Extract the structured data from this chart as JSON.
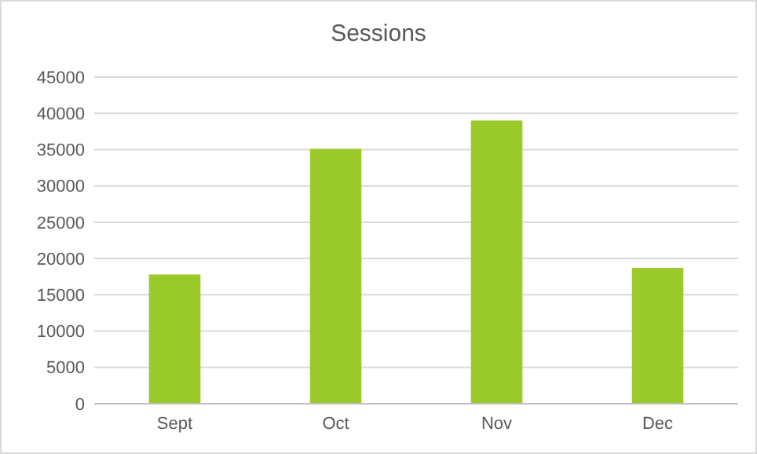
{
  "chart_data": {
    "type": "bar",
    "title": "Sessions",
    "categories": [
      "Sept",
      "Oct",
      "Nov",
      "Dec"
    ],
    "values": [
      17800,
      35100,
      39000,
      18700
    ],
    "color": "#9acb2b",
    "ylim": [
      0,
      45000
    ],
    "yticks": [
      0,
      5000,
      10000,
      15000,
      20000,
      25000,
      30000,
      35000,
      40000,
      45000
    ],
    "grid": "y"
  }
}
